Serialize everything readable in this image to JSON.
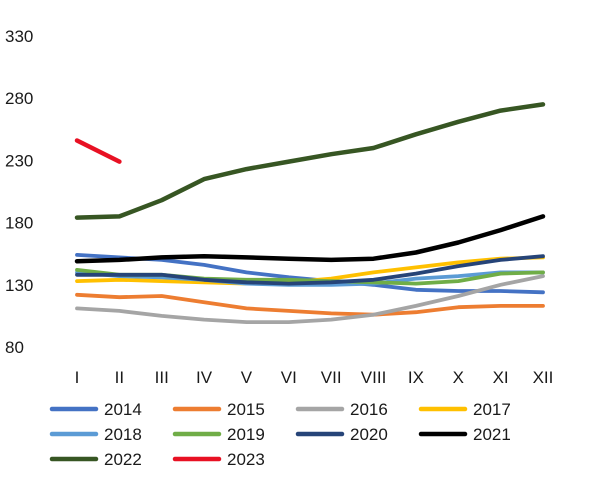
{
  "chart_data": {
    "type": "line",
    "categories": [
      "I",
      "II",
      "III",
      "IV",
      "V",
      "VI",
      "VII",
      "VIII",
      "IX",
      "X",
      "XI",
      "XII"
    ],
    "ylim": [
      80,
      330
    ],
    "yticks": [
      80,
      130,
      180,
      230,
      280,
      330
    ],
    "grid": false,
    "legend": "bottom",
    "series": [
      {
        "name": "2014",
        "color": "#4472c4",
        "values": [
          154,
          152,
          150,
          146,
          140,
          136,
          133,
          130,
          126,
          125,
          125,
          124
        ]
      },
      {
        "name": "2015",
        "color": "#ed7d31",
        "values": [
          122,
          120,
          121,
          116,
          111,
          109,
          107,
          106,
          108,
          112,
          113,
          113
        ]
      },
      {
        "name": "2016",
        "color": "#a5a5a5",
        "values": [
          111,
          109,
          105,
          102,
          100,
          100,
          102,
          106,
          113,
          121,
          130,
          137
        ]
      },
      {
        "name": "2017",
        "color": "#ffc000",
        "values": [
          133,
          134,
          133,
          132,
          131,
          132,
          135,
          140,
          144,
          148,
          151,
          152
        ]
      },
      {
        "name": "2018",
        "color": "#5b9bd5",
        "values": [
          140,
          137,
          136,
          134,
          131,
          130,
          130,
          131,
          135,
          137,
          140,
          140
        ]
      },
      {
        "name": "2019",
        "color": "#70ad47",
        "values": [
          142,
          138,
          138,
          135,
          134,
          134,
          133,
          132,
          131,
          133,
          139,
          140
        ]
      },
      {
        "name": "2020",
        "color": "#264478",
        "values": [
          138,
          138,
          138,
          134,
          132,
          131,
          132,
          134,
          139,
          145,
          150,
          153
        ]
      },
      {
        "name": "2021",
        "color": "#000000",
        "values": [
          149,
          150,
          152,
          153,
          152,
          151,
          150,
          151,
          156,
          164,
          174,
          185
        ]
      },
      {
        "name": "2022",
        "color": "#375623",
        "values": [
          184,
          185,
          198,
          215,
          223,
          229,
          235,
          240,
          251,
          261,
          270,
          275
        ]
      },
      {
        "name": "2023",
        "color": "#e81123",
        "values": [
          246,
          229,
          null,
          null,
          null,
          null,
          null,
          null,
          null,
          null,
          null,
          null
        ]
      }
    ]
  }
}
